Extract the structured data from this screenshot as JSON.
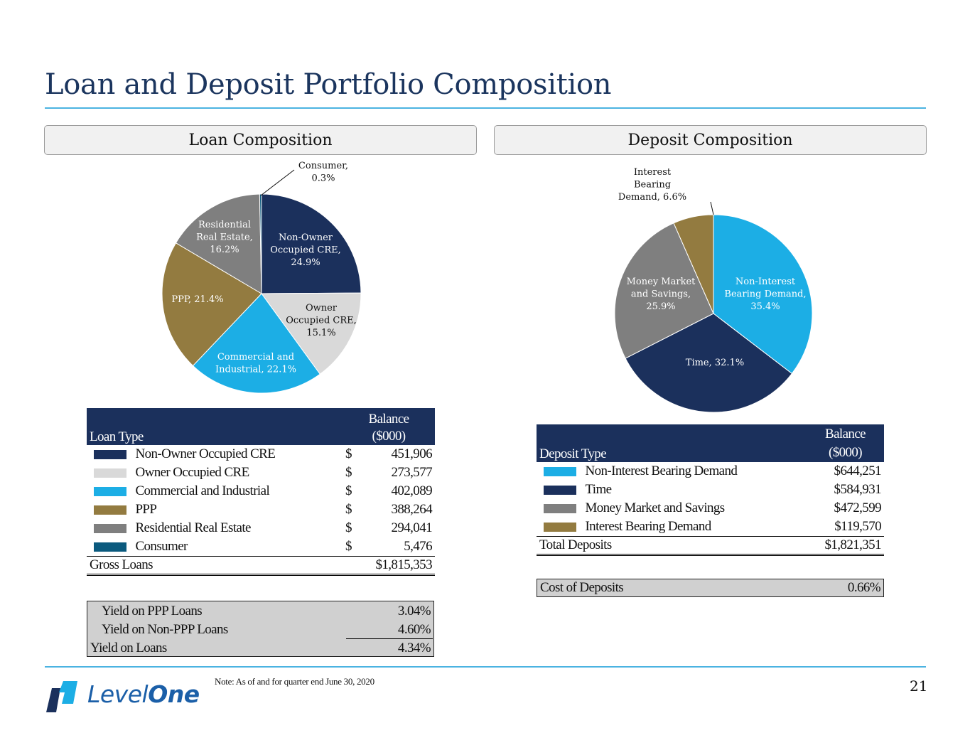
{
  "slide": {
    "title": "Loan and Deposit Portfolio Composition",
    "page_number": "21",
    "note": "Note: As of and for quarter end June 30, 2020",
    "logo": {
      "text_part1": "Level",
      "text_part2": "One"
    }
  },
  "colors": {
    "navy": "#1b305c",
    "light_gray": "#d9d9d9",
    "sky_blue": "#1caee5",
    "gold": "#937b40",
    "gray": "#7f7f7f",
    "teal": "#0b5a7e",
    "accent_rule": "#4bb3e1"
  },
  "loan_section": {
    "header": "Loan Composition",
    "table": {
      "col_type": "Loan Type",
      "col_balance_line1": "Balance",
      "col_balance_line2": "($000)",
      "rows": [
        {
          "name": "Non-Owner Occupied CRE",
          "dollar": "$",
          "amount": "451,906",
          "color": "#1b305c"
        },
        {
          "name": "Owner Occupied CRE",
          "dollar": "$",
          "amount": "273,577",
          "color": "#d9d9d9"
        },
        {
          "name": "Commercial and Industrial",
          "dollar": "$",
          "amount": "402,089",
          "color": "#1caee5"
        },
        {
          "name": "PPP",
          "dollar": "$",
          "amount": "388,264",
          "color": "#937b40"
        },
        {
          "name": "Residential Real Estate",
          "dollar": "$",
          "amount": "294,041",
          "color": "#7f7f7f"
        },
        {
          "name": "Consumer",
          "dollar": "$",
          "amount": "5,476",
          "color": "#0b5a7e"
        }
      ],
      "total_label": "Gross Loans",
      "total_amount": "$1,815,353"
    },
    "yields": [
      {
        "label": "Yield on PPP Loans",
        "value": "3.04%"
      },
      {
        "label": "Yield on Non-PPP Loans",
        "value": "4.60%"
      },
      {
        "label": "Yield on Loans",
        "value": "4.34%"
      }
    ]
  },
  "deposit_section": {
    "header": "Deposit Composition",
    "table": {
      "col_type": "Deposit Type",
      "col_balance_line1": "Balance",
      "col_balance_line2": "($000)",
      "rows": [
        {
          "name": "Non-Interest Bearing Demand",
          "amount": "$644,251",
          "color": "#1caee5"
        },
        {
          "name": "Time",
          "amount": "$584,931",
          "color": "#1b305c"
        },
        {
          "name": "Money Market and Savings",
          "amount": "$472,599",
          "color": "#7f7f7f"
        },
        {
          "name": "Interest Bearing Demand",
          "amount": "$119,570",
          "color": "#937b40"
        }
      ],
      "total_label": "Total Deposits",
      "total_amount": "$1,821,351"
    },
    "cost_label": "Cost of Deposits",
    "cost_value": "0.66%"
  },
  "chart_data": [
    {
      "type": "pie",
      "title": "Loan Composition",
      "slices": [
        {
          "name": "Non-Owner Occupied CRE",
          "value": 24.9,
          "color": "#1b305c",
          "label_lines": [
            "Non-Owner",
            "Occupied CRE,",
            "24.9%"
          ],
          "label_color": "#ffffff"
        },
        {
          "name": "Owner Occupied CRE",
          "value": 15.1,
          "color": "#d9d9d9",
          "label_lines": [
            "Owner",
            "Occupied CRE,",
            "15.1%"
          ],
          "label_color": "#111111"
        },
        {
          "name": "Commercial and Industrial",
          "value": 22.1,
          "color": "#1caee5",
          "label_lines": [
            "Commercial and",
            "Industrial, 22.1%"
          ],
          "label_color": "#ffffff"
        },
        {
          "name": "PPP",
          "value": 21.4,
          "color": "#937b40",
          "label_lines": [
            "PPP, 21.4%"
          ],
          "label_color": "#ffffff"
        },
        {
          "name": "Residential Real Estate",
          "value": 16.2,
          "color": "#7f7f7f",
          "label_lines": [
            "Residential",
            "Real Estate,",
            "16.2%"
          ],
          "label_color": "#ffffff"
        },
        {
          "name": "Consumer",
          "value": 0.3,
          "color": "#0b5a7e",
          "label_lines": [
            "Consumer,",
            "0.3%"
          ],
          "label_color": "#111111"
        }
      ]
    },
    {
      "type": "pie",
      "title": "Deposit Composition",
      "slices": [
        {
          "name": "Non-Interest Bearing Demand",
          "value": 35.4,
          "color": "#1caee5",
          "label_lines": [
            "Non-Interest",
            "Bearing Demand,",
            "35.4%"
          ],
          "label_color": "#ffffff"
        },
        {
          "name": "Time",
          "value": 32.1,
          "color": "#1b305c",
          "label_lines": [
            "Time, 32.1%"
          ],
          "label_color": "#ffffff"
        },
        {
          "name": "Money Market and Savings",
          "value": 25.9,
          "color": "#7f7f7f",
          "label_lines": [
            "Money Market",
            "and Savings,",
            "25.9%"
          ],
          "label_color": "#ffffff"
        },
        {
          "name": "Interest Bearing Demand",
          "value": 6.6,
          "color": "#937b40",
          "label_lines": [
            "Interest",
            "Bearing",
            "Demand, 6.6%"
          ],
          "label_color": "#111111"
        }
      ]
    }
  ]
}
